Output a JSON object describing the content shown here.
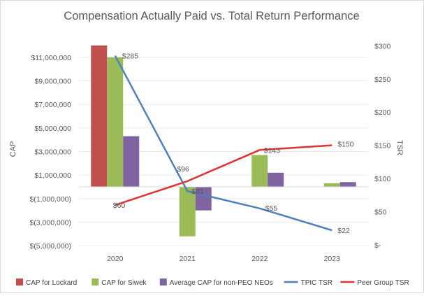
{
  "chart_data": {
    "type": "bar",
    "title": "Compensation Actually Paid vs. Total Return Performance",
    "categories": [
      "2020",
      "2021",
      "2022",
      "2023"
    ],
    "xlabel": "",
    "ylabel": "CAP",
    "y2label": "TSR",
    "ylim": [
      -5000000,
      12000000
    ],
    "y2lim": [
      0,
      300
    ],
    "y_ticks": [
      {
        "value": 11000000,
        "label": "$11,000,000"
      },
      {
        "value": 9000000,
        "label": "$9,000,000"
      },
      {
        "value": 7000000,
        "label": "$7,000,000"
      },
      {
        "value": 5000000,
        "label": "$5,000,000"
      },
      {
        "value": 3000000,
        "label": "$3,000,000"
      },
      {
        "value": 1000000,
        "label": "$1,000,000"
      },
      {
        "value": -1000000,
        "label": "$(1,000,000)"
      },
      {
        "value": -3000000,
        "label": "$(3,000,000)"
      },
      {
        "value": -5000000,
        "label": "$(5,000,000)"
      }
    ],
    "y2_ticks": [
      {
        "value": 300,
        "label": "$300"
      },
      {
        "value": 250,
        "label": "$250"
      },
      {
        "value": 200,
        "label": "$200"
      },
      {
        "value": 150,
        "label": "$150"
      },
      {
        "value": 100,
        "label": "$100"
      },
      {
        "value": 50,
        "label": "$50"
      },
      {
        "value": 0,
        "label": "$-"
      }
    ],
    "bar_series": [
      {
        "name": "CAP for Lockard",
        "color": "#c0504d",
        "values": [
          12000000,
          null,
          null,
          null
        ]
      },
      {
        "name": "CAP for Siwek",
        "color": "#9bbb59",
        "values": [
          11000000,
          -4200000,
          2700000,
          300000
        ]
      },
      {
        "name": "Average CAP for non-PEO NEOs",
        "color": "#8064a2",
        "values": [
          4300000,
          -2000000,
          1200000,
          400000
        ]
      }
    ],
    "line_series": [
      {
        "name": "TPIC TSR",
        "color": "#4f81bd",
        "values": [
          285,
          81,
          55,
          22
        ],
        "labels": [
          "$285",
          "$81",
          "$55",
          "$22"
        ]
      },
      {
        "name": "Peer Group TSR",
        "color": "#e03232",
        "values": [
          60,
          96,
          143,
          150
        ],
        "labels": [
          "$60",
          "$96",
          "$143",
          "$150"
        ]
      }
    ],
    "legend_position": "bottom"
  }
}
